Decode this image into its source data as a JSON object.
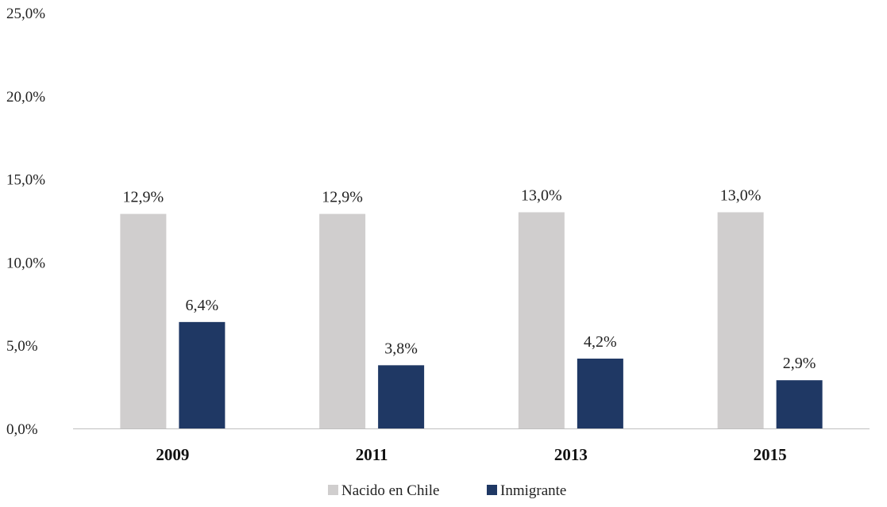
{
  "chart_data": {
    "type": "bar",
    "categories": [
      "2009",
      "2011",
      "2013",
      "2015"
    ],
    "series": [
      {
        "name": "Nacido en Chile",
        "values": [
          12.9,
          12.9,
          13.0,
          13.0
        ],
        "labels": [
          "12,9%",
          "12,9%",
          "13,0%",
          "13,0%"
        ],
        "color": "#d0cece"
      },
      {
        "name": "Inmigrante",
        "values": [
          6.4,
          3.8,
          4.2,
          2.9
        ],
        "labels": [
          "6,4%",
          "3,8%",
          "4,2%",
          "2,9%"
        ],
        "color": "#1f3864"
      }
    ],
    "ylim": [
      0,
      25
    ],
    "yticks": [
      0,
      5,
      10,
      15,
      20,
      25
    ],
    "ytick_labels": [
      "0,0%",
      "5,0%",
      "10,0%",
      "15,0%",
      "20,0%",
      "25,0%"
    ],
    "grid": false,
    "legend_position": "bottom"
  }
}
